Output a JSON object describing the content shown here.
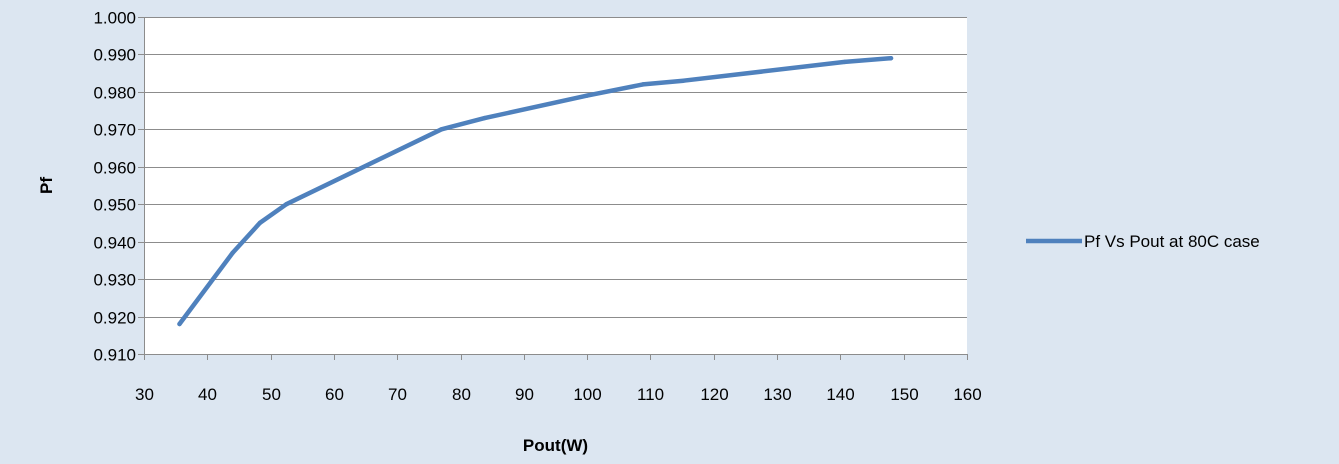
{
  "chart_data": {
    "type": "line",
    "title": "",
    "xlabel": "Pout(W)",
    "ylabel": "Pf",
    "xlim": [
      30,
      160
    ],
    "ylim": [
      0.91,
      1.0
    ],
    "x_ticks": [
      30,
      40,
      50,
      60,
      70,
      80,
      90,
      100,
      110,
      120,
      130,
      140,
      150,
      160
    ],
    "y_ticks": [
      0.91,
      0.92,
      0.93,
      0.94,
      0.95,
      0.96,
      0.97,
      0.98,
      0.99,
      1.0
    ],
    "y_tick_labels": [
      "0.910",
      "0.920",
      "0.930",
      "0.940",
      "0.950",
      "0.960",
      "0.970",
      "0.980",
      "0.990",
      "1.000"
    ],
    "x_tick_labels": [
      "30",
      "40",
      "50",
      "60",
      "70",
      "80",
      "90",
      "100",
      "110",
      "120",
      "130",
      "140",
      "150",
      "160"
    ],
    "grid": "horizontal",
    "legend_position": "right",
    "series": [
      {
        "name": "Pf Vs Pout at 80C case",
        "color": "#4f81bd",
        "points": [
          {
            "x": 35.6,
            "y": 0.918
          },
          {
            "x": 44.0,
            "y": 0.937
          },
          {
            "x": 48.3,
            "y": 0.945
          },
          {
            "x": 52.5,
            "y": 0.95
          },
          {
            "x": 77.0,
            "y": 0.97
          },
          {
            "x": 83.8,
            "y": 0.973
          },
          {
            "x": 100.0,
            "y": 0.979
          },
          {
            "x": 108.8,
            "y": 0.982
          },
          {
            "x": 115.2,
            "y": 0.983
          },
          {
            "x": 140.7,
            "y": 0.988
          },
          {
            "x": 148.0,
            "y": 0.989
          }
        ]
      }
    ]
  }
}
